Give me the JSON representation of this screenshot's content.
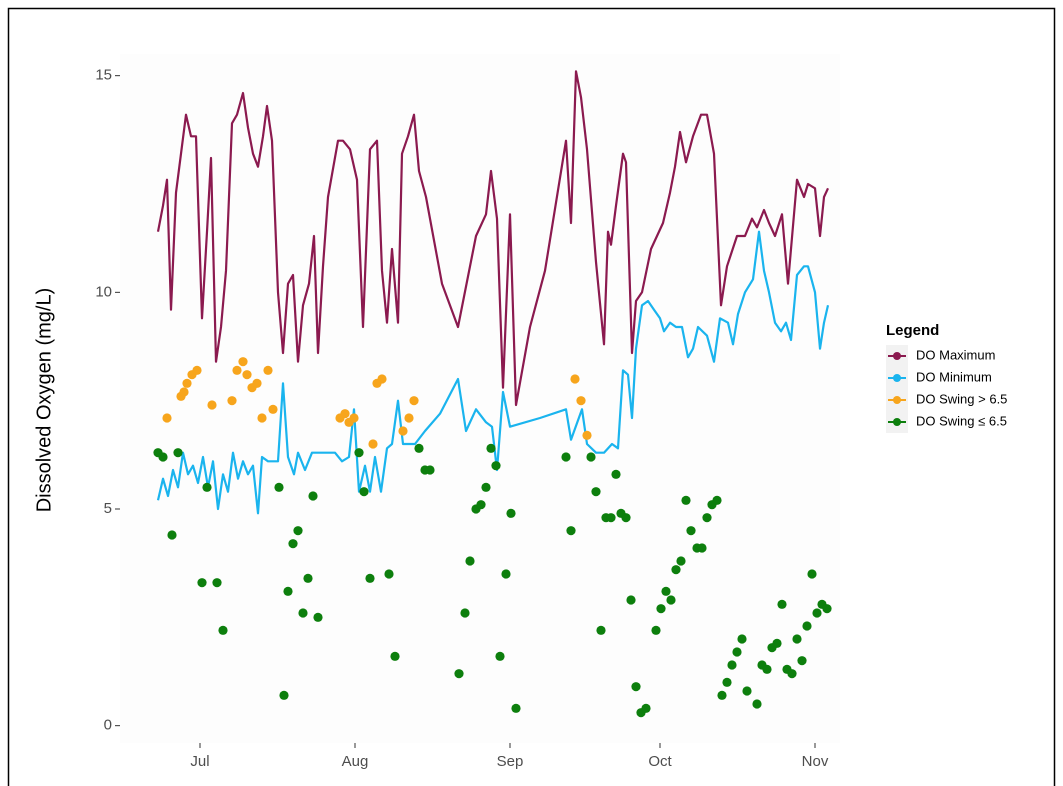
{
  "chart_data": {
    "type": "line",
    "y_label": "Dissolved Oxygen (mg/L)",
    "ylim": [
      -0.4,
      15.5
    ],
    "yticks": [
      0,
      5,
      10,
      15
    ],
    "xlim": [
      166,
      310
    ],
    "xticks": [
      {
        "value": 182,
        "label": "Jul"
      },
      {
        "value": 213,
        "label": "Aug"
      },
      {
        "value": 244,
        "label": "Sep"
      },
      {
        "value": 274,
        "label": "Oct"
      },
      {
        "value": 305,
        "label": "Nov"
      }
    ],
    "legend_title": "Legend",
    "legend_position": "right",
    "series": [
      {
        "name": "DO Maximum",
        "color": "#8b1a4f",
        "type": "line",
        "x": [
          173.6,
          174.6,
          175.4,
          176.2,
          177.2,
          178.2,
          179.2,
          180.2,
          181.2,
          182.4,
          183.4,
          184.2,
          185.2,
          186.2,
          187.2,
          188.4,
          189.4,
          190.6,
          191.6,
          192.6,
          193.6,
          194.6,
          195.4,
          196.4,
          197.6,
          198.6,
          199.6,
          200.6,
          201.6,
          202.6,
          203.8,
          204.8,
          205.6,
          206.6,
          207.6,
          209.6,
          210.6,
          212,
          213.4,
          214.6,
          216,
          217.4,
          218.4,
          219.4,
          220.4,
          221.6,
          222.4,
          223.6,
          224.8,
          225.8,
          227.2,
          230.4,
          233.6,
          237.2,
          239.2,
          240.2,
          241.4,
          242.6,
          244,
          245.2,
          248,
          251,
          255.2,
          256.2,
          257.2,
          258.2,
          259.4,
          261.2,
          262.8,
          263.6,
          264.2,
          265.2,
          266.6,
          267.2,
          268.4,
          269.2,
          270.4,
          272.2,
          274.6,
          276,
          277,
          278,
          279.2,
          280.6,
          282.2,
          283.4,
          284.8,
          286.2,
          287.4,
          289.4,
          291,
          292.4,
          293.4,
          294.8,
          295.8,
          297,
          298.4,
          299.6,
          301.4,
          302.8,
          303.6,
          305,
          306,
          306.8,
          307.6
        ],
        "values": [
          11.4,
          12.0,
          12.6,
          9.6,
          12.3,
          13.2,
          14.1,
          13.6,
          13.6,
          9.4,
          11.4,
          13.1,
          8.4,
          9.2,
          10.5,
          13.9,
          14.1,
          14.6,
          13.8,
          13.2,
          12.9,
          13.6,
          14.3,
          13.5,
          10.0,
          8.6,
          10.2,
          10.4,
          8.4,
          9.7,
          10.2,
          11.3,
          8.6,
          10.6,
          12.2,
          13.5,
          13.5,
          13.3,
          12.6,
          9.2,
          13.3,
          13.5,
          10.5,
          9.3,
          11.0,
          9.3,
          13.2,
          13.6,
          14.1,
          12.8,
          12.2,
          10.2,
          9.2,
          11.3,
          11.8,
          12.8,
          11.7,
          7.8,
          11.8,
          7.4,
          9.2,
          10.5,
          13.5,
          11.6,
          15.1,
          14.5,
          13.3,
          10.7,
          8.8,
          11.4,
          11.1,
          12.0,
          13.2,
          13.0,
          8.6,
          9.8,
          10.0,
          11.0,
          11.6,
          12.3,
          12.9,
          13.7,
          13.0,
          13.6,
          14.1,
          14.1,
          13.2,
          9.7,
          10.6,
          11.3,
          11.3,
          11.7,
          11.5,
          11.9,
          11.6,
          11.3,
          11.8,
          10.2,
          12.6,
          12.2,
          12.5,
          12.4,
          11.3,
          12.2,
          12.4
        ]
      },
      {
        "name": "DO Minimum",
        "color": "#1ab4ee",
        "type": "line",
        "x": [
          173.6,
          174.6,
          175.6,
          176.6,
          177.6,
          178.6,
          179.6,
          180.6,
          181.6,
          182.6,
          183.6,
          184.6,
          185.6,
          186.6,
          187.6,
          188.6,
          189.6,
          190.6,
          191.6,
          192.6,
          193.6,
          194.4,
          195.6,
          197.6,
          198.6,
          199.6,
          200.8,
          201.6,
          203,
          204.4,
          206,
          209,
          210.4,
          211.8,
          212.8,
          213.8,
          215,
          216,
          217,
          218.2,
          219.4,
          220.4,
          221.6,
          222.6,
          224,
          225,
          227,
          230,
          233.6,
          235.2,
          237.2,
          239.2,
          240.4,
          241.4,
          242.6,
          244,
          250,
          255.2,
          256.2,
          258.4,
          259.4,
          261.2,
          262.8,
          264.4,
          265.6,
          266.6,
          267.6,
          268.4,
          269.2,
          270.4,
          271.6,
          272.8,
          274,
          274.8,
          276,
          277.2,
          278.4,
          279.6,
          280.6,
          281.6,
          283.4,
          284.8,
          286,
          287.6,
          288.6,
          289.6,
          291,
          292.6,
          293.8,
          294.8,
          295.8,
          297,
          298.2,
          299.2,
          300.2,
          301.4,
          302.8,
          303.6,
          305,
          306,
          306.8,
          307.6
        ],
        "values": [
          5.2,
          5.7,
          5.3,
          5.9,
          5.5,
          6.3,
          5.8,
          6.0,
          5.6,
          6.2,
          5.5,
          6.1,
          5.0,
          5.8,
          5.4,
          6.3,
          5.7,
          6.1,
          5.8,
          6.0,
          4.9,
          6.2,
          6.1,
          6.1,
          7.9,
          6.2,
          5.8,
          6.3,
          5.9,
          6.3,
          6.3,
          6.3,
          6.1,
          6.2,
          7.3,
          5.4,
          6.0,
          5.4,
          6.2,
          5.4,
          6.4,
          6.5,
          7.5,
          6.5,
          6.5,
          6.5,
          6.8,
          7.2,
          8.0,
          6.8,
          7.3,
          7.0,
          6.9,
          5.9,
          7.7,
          6.9,
          7.1,
          7.3,
          6.6,
          7.3,
          6.5,
          6.3,
          6.3,
          6.5,
          6.4,
          8.2,
          8.1,
          7.1,
          8.7,
          9.7,
          9.8,
          9.6,
          9.4,
          9.1,
          9.3,
          9.2,
          9.2,
          8.5,
          8.7,
          9.2,
          9.0,
          8.4,
          9.4,
          9.3,
          8.8,
          9.5,
          10.0,
          10.3,
          11.4,
          10.5,
          10.0,
          9.3,
          9.1,
          9.3,
          8.9,
          10.4,
          10.6,
          10.6,
          10.0,
          8.7,
          9.3,
          9.7
        ]
      },
      {
        "name": "DO Swing > 6.5",
        "color": "#f7a51c",
        "type": "points",
        "x": [
          175.4,
          178.2,
          178.8,
          179.4,
          180.4,
          181.4,
          184.4,
          188.4,
          189.4,
          190.6,
          191.4,
          192.4,
          193.4,
          194.4,
          195.6,
          196.6,
          210,
          211,
          211.8,
          212.8,
          216.6,
          217.4,
          218.4,
          222.6,
          223.8,
          224.8,
          257,
          258.2,
          259.4
        ],
        "values": [
          7.1,
          7.6,
          7.7,
          7.9,
          8.1,
          8.2,
          7.4,
          7.5,
          8.2,
          8.4,
          8.1,
          7.8,
          7.9,
          7.1,
          8.2,
          7.3,
          7.1,
          7.2,
          7.0,
          7.1,
          6.5,
          7.9,
          8.0,
          6.8,
          7.1,
          7.5,
          8.0,
          7.5,
          6.7
        ]
      },
      {
        "name": "DO Swing ≤ 6.5",
        "color": "#0d7f0d",
        "type": "points",
        "x": [
          173.6,
          174.6,
          176.4,
          177.6,
          182.4,
          183.4,
          185.4,
          186.6,
          197.8,
          198.8,
          199.6,
          200.6,
          201.6,
          202.6,
          203.6,
          204.6,
          205.6,
          213.8,
          214.8,
          216,
          219.8,
          221,
          225.8,
          227,
          228,
          233.8,
          235,
          236,
          237.2,
          238.2,
          239.2,
          240.2,
          241.2,
          242,
          243.2,
          244.2,
          245.2,
          255.2,
          256.2,
          260.2,
          261.2,
          262.2,
          263.2,
          264.2,
          265.2,
          266.2,
          267.2,
          268.2,
          269.2,
          270.2,
          271.2,
          273.2,
          274.2,
          275.2,
          276.2,
          277.2,
          278.2,
          279.2,
          280.2,
          281.4,
          282.4,
          283.4,
          284.4,
          285.4,
          286.4,
          287.4,
          288.4,
          289.4,
          290.4,
          291.4,
          293.4,
          294.4,
          295.4,
          296.4,
          297.4,
          298.4,
          299.4,
          300.4,
          301.4,
          302.4,
          303.4,
          304.4,
          305.4,
          306.4,
          307.4
        ],
        "values": [
          6.3,
          6.2,
          4.4,
          6.3,
          3.3,
          5.5,
          3.3,
          2.2,
          5.5,
          0.7,
          3.1,
          4.2,
          4.5,
          2.6,
          3.4,
          5.3,
          2.5,
          6.3,
          5.4,
          3.4,
          3.5,
          1.6,
          6.4,
          5.9,
          5.9,
          1.2,
          2.6,
          3.8,
          5.0,
          5.1,
          5.5,
          6.4,
          6.0,
          1.6,
          3.5,
          4.9,
          0.4,
          6.2,
          4.5,
          6.2,
          5.4,
          2.2,
          4.8,
          4.8,
          5.8,
          4.9,
          4.8,
          2.9,
          0.9,
          0.3,
          0.4,
          2.2,
          2.7,
          3.1,
          2.9,
          3.6,
          3.8,
          5.2,
          4.5,
          4.1,
          4.1,
          4.8,
          5.1,
          5.2,
          0.7,
          1.0,
          1.4,
          1.7,
          2.0,
          0.8,
          0.5,
          1.4,
          1.3,
          1.8,
          1.9,
          2.8,
          1.3,
          1.2,
          2.0,
          1.5,
          2.3,
          3.5,
          2.6,
          2.8,
          2.7
        ]
      }
    ]
  }
}
